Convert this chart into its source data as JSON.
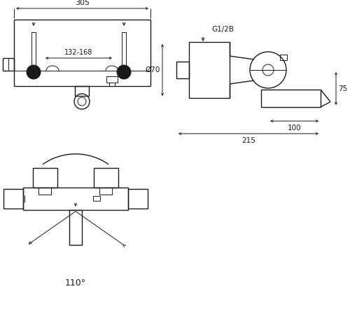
{
  "bg_color": "#ffffff",
  "line_color": "#1a1a1a",
  "fig_width": 5.0,
  "fig_height": 4.43,
  "dpi": 100,
  "labels": {
    "dim_305": "305",
    "dim_132_168": "132-168",
    "g12b": "G1/2B",
    "d70": "Ø70",
    "dim_75": "75",
    "dim_100": "100",
    "dim_215": "215",
    "angle": "110°"
  }
}
